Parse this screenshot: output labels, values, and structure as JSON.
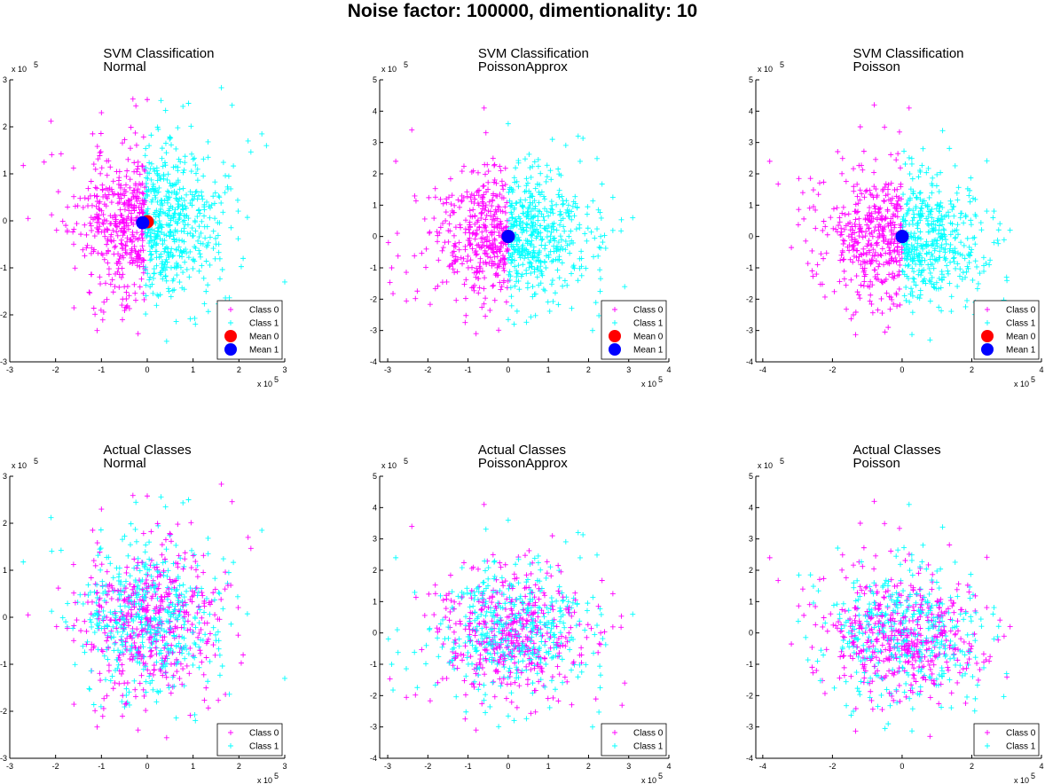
{
  "figure_title": "Noise factor: 100000, dimentionality: 10",
  "colors": {
    "class0": "#ff00ff",
    "class1": "#00ffff",
    "mean0": "#ff0000",
    "mean1": "#0000ff",
    "axis": "#000000"
  },
  "chart_data": [
    {
      "type": "scatter",
      "title": [
        "SVM Classification",
        "Normal"
      ],
      "xlim": [
        -3,
        3
      ],
      "ylim": [
        -3,
        3
      ],
      "xticks": [
        -3,
        -2,
        -1,
        0,
        1,
        2,
        3
      ],
      "yticks": [
        -3,
        -2,
        -1,
        0,
        1,
        2,
        3
      ],
      "tick_labels_x": [
        "-3",
        "-2",
        "-1",
        "0",
        "1",
        "2",
        "3"
      ],
      "tick_labels_y": [
        "-3",
        "-2",
        "-1",
        "0",
        "1",
        "2",
        "3"
      ],
      "x_exponent_label": "x 10",
      "y_exponent_label": "x 10",
      "exponent": "5",
      "cloud": {
        "n0": 460,
        "n1": 460,
        "sx": 0.78,
        "sy": 0.82,
        "rot": 0,
        "split": "svm",
        "seed": 11,
        "pad": 0.0
      },
      "outliers_class0": [
        [
          -2.6,
          0.05
        ],
        [
          -2.1,
          2.12
        ],
        [
          -1.0,
          2.3
        ],
        [
          0.0,
          2.58
        ],
        [
          -0.2,
          -2.4
        ],
        [
          -1.6,
          -1.85
        ],
        [
          -2.25,
          1.25
        ]
      ],
      "outliers_class1": [
        [
          0.4,
          2.35
        ],
        [
          0.9,
          2.5
        ],
        [
          2.5,
          1.85
        ],
        [
          3.0,
          -1.3
        ],
        [
          2.2,
          1.7
        ],
        [
          1.05,
          -2.2
        ],
        [
          2.6,
          1.6
        ]
      ],
      "means": {
        "mean0": [
          0.0,
          -0.02
        ],
        "mean1": [
          -0.1,
          -0.04
        ]
      },
      "legend": [
        "Class 0",
        "Class 1",
        "Mean 0",
        "Mean 1"
      ],
      "legend_position": "bottom-right",
      "grid": false
    },
    {
      "type": "scatter",
      "title": [
        "SVM Classification",
        "PoissonApprox"
      ],
      "xlim": [
        -3.2,
        4
      ],
      "ylim": [
        -4,
        5
      ],
      "xticks": [
        -3,
        -2,
        -1,
        0,
        1,
        2,
        3,
        4
      ],
      "yticks": [
        -4,
        -3,
        -2,
        -1,
        0,
        1,
        2,
        3,
        4,
        5
      ],
      "tick_labels_x": [
        "-3",
        "-2",
        "-1",
        "0",
        "1",
        "2",
        "3",
        "4"
      ],
      "tick_labels_y": [
        "-4",
        "-3",
        "-2",
        "-1",
        "0",
        "1",
        "2",
        "3",
        "4",
        "5"
      ],
      "x_exponent_label": "x 10",
      "y_exponent_label": "x 10",
      "exponent": "5",
      "cloud": {
        "n0": 430,
        "n1": 430,
        "sx": 0.95,
        "sy": 1.05,
        "rot": -0.2,
        "split": "svm",
        "seed": 23,
        "pad": 0.0
      },
      "outliers_class0": [
        [
          -2.4,
          3.4
        ],
        [
          -0.6,
          4.1
        ],
        [
          -2.8,
          2.4
        ],
        [
          -0.8,
          -3.1
        ],
        [
          -2.9,
          -1.0
        ]
      ],
      "outliers_class1": [
        [
          1.1,
          3.1
        ],
        [
          3.1,
          0.6
        ],
        [
          2.1,
          -3.0
        ],
        [
          0.0,
          3.6
        ],
        [
          2.9,
          -1.6
        ]
      ],
      "means": {
        "mean0": [
          0.0,
          0.0
        ],
        "mean1": [
          0.0,
          0.0
        ]
      },
      "legend": [
        "Class 0",
        "Class 1",
        "Mean 0",
        "Mean 1"
      ],
      "legend_position": "bottom-right",
      "grid": false
    },
    {
      "type": "scatter",
      "title": [
        "SVM Classification",
        "Poisson"
      ],
      "xlim": [
        -4.2,
        4
      ],
      "ylim": [
        -4,
        5
      ],
      "xticks": [
        -4,
        -2,
        0,
        2,
        4
      ],
      "yticks": [
        -4,
        -3,
        -2,
        -1,
        0,
        1,
        2,
        3,
        4,
        5
      ],
      "tick_labels_x": [
        "-4",
        "-2",
        "0",
        "2",
        "4"
      ],
      "tick_labels_y": [
        "-4",
        "-3",
        "-2",
        "-1",
        "0",
        "1",
        "2",
        "3",
        "4",
        "5"
      ],
      "x_exponent_label": "x 10",
      "y_exponent_label": "x 10",
      "exponent": "5",
      "cloud": {
        "n0": 430,
        "n1": 430,
        "sx": 1.15,
        "sy": 1.05,
        "rot": -0.25,
        "split": "svm",
        "seed": 37,
        "pad": 0.0
      },
      "outliers_class0": [
        [
          -3.8,
          2.4
        ],
        [
          -0.8,
          4.2
        ],
        [
          0.2,
          4.1
        ],
        [
          -1.2,
          3.5
        ],
        [
          -0.4,
          -2.9
        ],
        [
          -1.4,
          -2.5
        ]
      ],
      "outliers_class1": [
        [
          3.1,
          0.2
        ],
        [
          2.5,
          -0.9
        ],
        [
          0.8,
          -3.3
        ],
        [
          3.0,
          -1.3
        ],
        [
          0.6,
          2.8
        ],
        [
          2.1,
          -2.1
        ]
      ],
      "means": {
        "mean0": [
          0.0,
          0.0
        ],
        "mean1": [
          0.0,
          0.0
        ]
      },
      "legend": [
        "Class 0",
        "Class 1",
        "Mean 0",
        "Mean 1"
      ],
      "legend_position": "bottom-right",
      "grid": false
    },
    {
      "type": "scatter",
      "title": [
        "Actual Classes",
        "Normal"
      ],
      "xlim": [
        -3,
        3
      ],
      "ylim": [
        -3,
        3
      ],
      "xticks": [
        -3,
        -2,
        -1,
        0,
        1,
        2,
        3
      ],
      "yticks": [
        -3,
        -2,
        -1,
        0,
        1,
        2,
        3
      ],
      "tick_labels_x": [
        "-3",
        "-2",
        "-1",
        "0",
        "1",
        "2",
        "3"
      ],
      "tick_labels_y": [
        "-3",
        "-2",
        "-1",
        "0",
        "1",
        "2",
        "3"
      ],
      "x_exponent_label": "x 10",
      "y_exponent_label": "x 10",
      "exponent": "5",
      "cloud": {
        "n0": 460,
        "n1": 460,
        "sx": 0.78,
        "sy": 0.82,
        "rot": 0,
        "split": "mixed",
        "seed": 11,
        "pad": 0.0
      },
      "outliers_class0": [
        [
          -2.6,
          0.05
        ],
        [
          -1.0,
          2.3
        ],
        [
          0.0,
          2.58
        ],
        [
          -0.2,
          -2.4
        ],
        [
          -1.6,
          -1.85
        ],
        [
          2.2,
          1.7
        ]
      ],
      "outliers_class1": [
        [
          -2.1,
          2.12
        ],
        [
          0.4,
          2.35
        ],
        [
          0.9,
          2.5
        ],
        [
          2.5,
          1.85
        ],
        [
          3.0,
          -1.3
        ],
        [
          1.05,
          -2.2
        ]
      ],
      "means": null,
      "legend": [
        "Class 0",
        "Class 1"
      ],
      "legend_position": "bottom-right",
      "grid": false
    },
    {
      "type": "scatter",
      "title": [
        "Actual Classes",
        "PoissonApprox"
      ],
      "xlim": [
        -3.2,
        4
      ],
      "ylim": [
        -4,
        5
      ],
      "xticks": [
        -3,
        -2,
        -1,
        0,
        1,
        2,
        3,
        4
      ],
      "yticks": [
        -4,
        -3,
        -2,
        -1,
        0,
        1,
        2,
        3,
        4,
        5
      ],
      "tick_labels_x": [
        "-3",
        "-2",
        "-1",
        "0",
        "1",
        "2",
        "3",
        "4"
      ],
      "tick_labels_y": [
        "-4",
        "-3",
        "-2",
        "-1",
        "0",
        "1",
        "2",
        "3",
        "4",
        "5"
      ],
      "x_exponent_label": "x 10",
      "y_exponent_label": "x 10",
      "exponent": "5",
      "cloud": {
        "n0": 430,
        "n1": 430,
        "sx": 0.95,
        "sy": 1.05,
        "rot": -0.2,
        "split": "mixed",
        "seed": 23,
        "pad": 0.0
      },
      "outliers_class0": [
        [
          -2.4,
          3.4
        ],
        [
          -0.6,
          4.1
        ],
        [
          1.1,
          3.1
        ],
        [
          -0.8,
          -3.1
        ],
        [
          2.9,
          -1.6
        ]
      ],
      "outliers_class1": [
        [
          -2.8,
          2.4
        ],
        [
          3.1,
          0.6
        ],
        [
          2.1,
          -3.0
        ],
        [
          0.0,
          3.6
        ],
        [
          -2.9,
          -1.0
        ]
      ],
      "means": null,
      "legend": [
        "Class 0",
        "Class 1"
      ],
      "legend_position": "bottom-right",
      "grid": false
    },
    {
      "type": "scatter",
      "title": [
        "Actual Classes",
        "Poisson"
      ],
      "xlim": [
        -4.2,
        4
      ],
      "ylim": [
        -4,
        5
      ],
      "xticks": [
        -4,
        -2,
        0,
        2,
        4
      ],
      "yticks": [
        -4,
        -3,
        -2,
        -1,
        0,
        1,
        2,
        3,
        4,
        5
      ],
      "tick_labels_x": [
        "-4",
        "-2",
        "0",
        "2",
        "4"
      ],
      "tick_labels_y": [
        "-4",
        "-3",
        "-2",
        "-1",
        "0",
        "1",
        "2",
        "3",
        "4",
        "5"
      ],
      "x_exponent_label": "x 10",
      "y_exponent_label": "x 10",
      "exponent": "5",
      "cloud": {
        "n0": 430,
        "n1": 430,
        "sx": 1.15,
        "sy": 1.05,
        "rot": -0.25,
        "split": "mixed",
        "seed": 37,
        "pad": 0.0
      },
      "outliers_class0": [
        [
          -3.8,
          2.4
        ],
        [
          -0.8,
          4.2
        ],
        [
          0.8,
          -3.3
        ],
        [
          -1.2,
          3.5
        ],
        [
          2.5,
          -0.9
        ],
        [
          3.1,
          0.2
        ]
      ],
      "outliers_class1": [
        [
          0.2,
          4.1
        ],
        [
          -0.4,
          -2.9
        ],
        [
          3.0,
          -1.3
        ],
        [
          0.6,
          2.8
        ],
        [
          2.1,
          -2.1
        ],
        [
          -1.4,
          -2.5
        ]
      ],
      "means": null,
      "legend": [
        "Class 0",
        "Class 1"
      ],
      "legend_position": "bottom-right",
      "grid": false
    }
  ]
}
